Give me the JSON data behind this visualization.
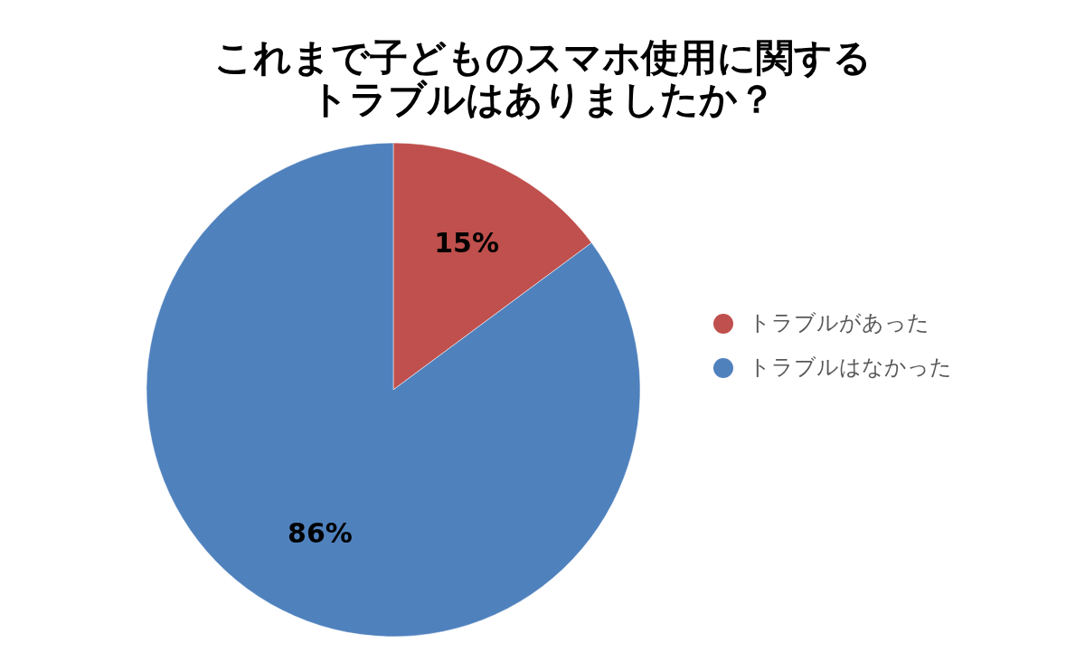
{
  "chart_data": {
    "type": "pie",
    "title": "これまで子どものスマホ使用に関するトラブルはありましたか？",
    "categories": [
      "トラブルがあった",
      "トラブルはなかった"
    ],
    "values": [
      15,
      86
    ],
    "colors": [
      "#c0504d",
      "#4f81bd"
    ],
    "value_labels": [
      "15%",
      "86%"
    ],
    "legend": "right"
  }
}
